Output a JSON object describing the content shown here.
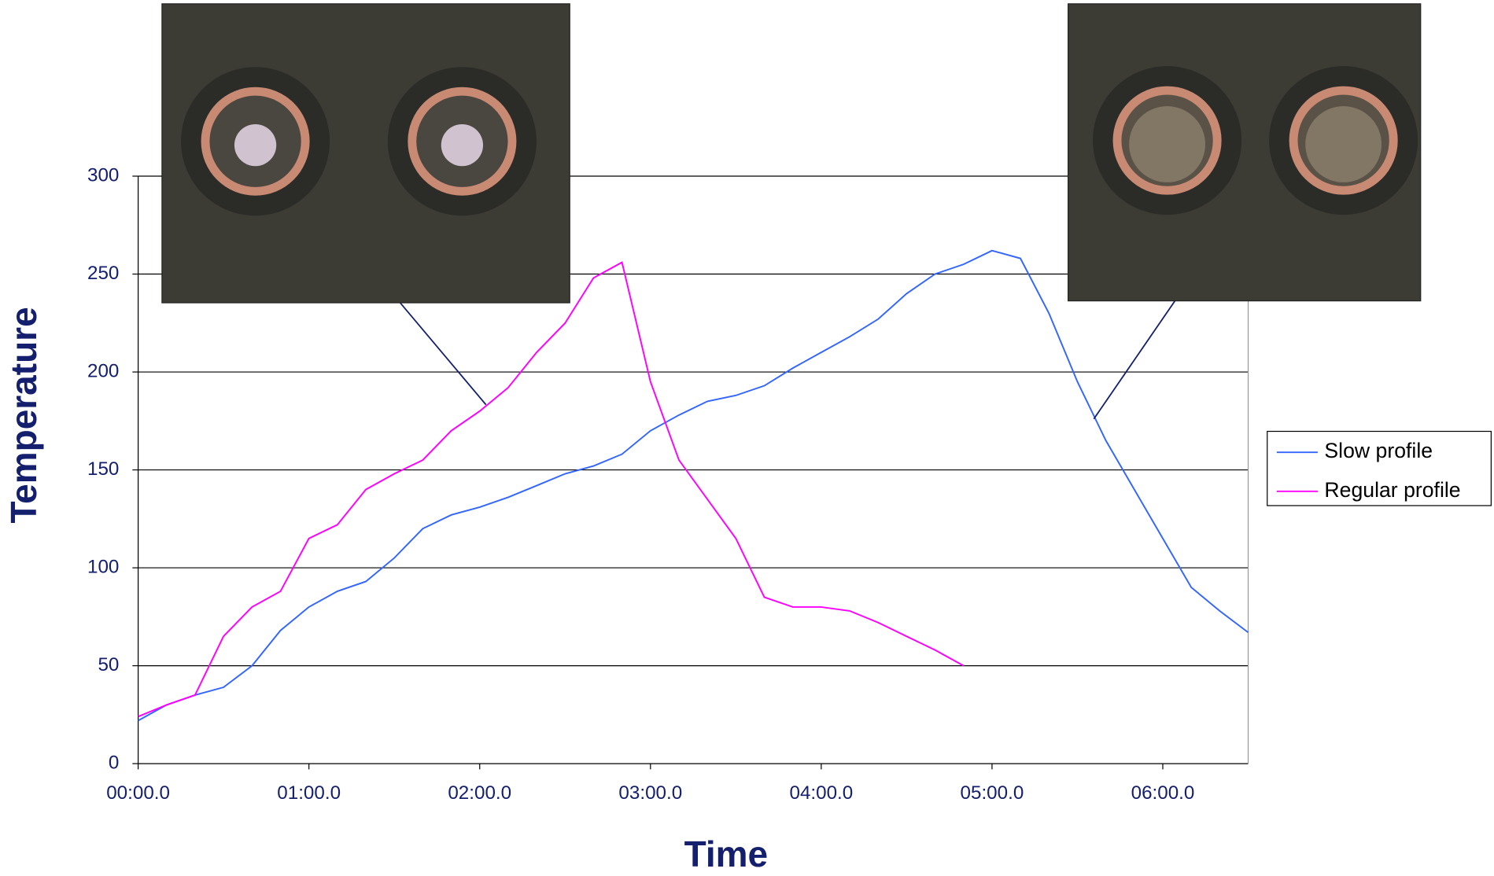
{
  "chart_data": {
    "type": "line",
    "x_label": "Time",
    "y_label": "Temperature",
    "x": [
      0,
      10,
      20,
      30,
      40,
      50,
      60,
      70,
      80,
      90,
      100,
      110,
      120,
      130,
      140,
      150,
      160,
      170,
      180,
      190,
      200,
      210,
      220,
      230,
      240,
      250,
      260,
      270,
      280,
      290,
      300,
      310,
      320,
      330,
      340,
      350,
      360,
      370,
      380,
      390
    ],
    "series": [
      {
        "name": "Slow profile",
        "color": "#3366ff",
        "values": [
          22,
          30,
          35,
          39,
          50,
          68,
          80,
          88,
          93,
          105,
          120,
          127,
          131,
          136,
          142,
          148,
          152,
          158,
          170,
          178,
          185,
          188,
          193,
          202,
          210,
          218,
          227,
          240,
          250,
          255,
          262,
          258,
          230,
          195,
          165,
          140,
          115,
          90,
          78,
          67
        ]
      },
      {
        "name": "Regular profile",
        "color": "#ff00ff",
        "values": [
          24,
          30,
          35,
          65,
          80,
          88,
          115,
          122,
          140,
          148,
          155,
          170,
          180,
          192,
          210,
          225,
          248,
          256,
          195,
          155,
          135,
          115,
          85,
          80,
          80,
          78,
          72,
          65,
          58,
          50,
          null,
          null,
          null,
          null,
          null,
          null,
          null,
          null,
          null,
          null
        ]
      }
    ],
    "xlim": [
      0,
      390
    ],
    "xticks": [
      {
        "value": 0,
        "label": "00:00.0"
      },
      {
        "value": 60,
        "label": "01:00.0"
      },
      {
        "value": 120,
        "label": "02:00.0"
      },
      {
        "value": 180,
        "label": "03:00.0"
      },
      {
        "value": 240,
        "label": "04:00.0"
      },
      {
        "value": 300,
        "label": "05:00.0"
      },
      {
        "value": 360,
        "label": "06:00.0"
      }
    ],
    "ylim": [
      0,
      300
    ],
    "yticks": [
      0,
      50,
      100,
      150,
      200,
      250,
      300
    ],
    "grid": true,
    "legend": "right"
  }
}
